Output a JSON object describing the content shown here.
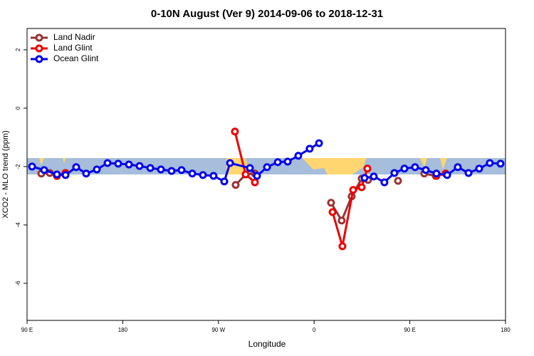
{
  "chart_data": {
    "type": "line",
    "title": "0-10N August (Ver 9)   2014-09-06 to 2018-12-31",
    "x_label": "Longitude",
    "y_label": "XCO2 - MLO trend (ppm)",
    "xlim": [
      90,
      540
    ],
    "ylim": [
      -7.27,
      2.73
    ],
    "xticks": [
      {
        "value": 90,
        "label": "90 E"
      },
      {
        "value": 180,
        "label": "180"
      },
      {
        "value": 270,
        "label": "90 W"
      },
      {
        "value": 360,
        "label": "0"
      },
      {
        "value": 450,
        "label": "90 E"
      },
      {
        "value": 540,
        "label": "180"
      }
    ],
    "yticks": [
      2,
      0,
      -2,
      -4,
      -6
    ],
    "legend": "top-left",
    "series": [
      {
        "name": "Land Nadir",
        "color": "#993333",
        "x": [
          103.4,
          111.4,
          118.1,
          126.2,
          null,
          286.2,
          295.6,
          304.3,
          null,
          375.9,
          385.9,
          395.3,
          404.7,
          410.7,
          null,
          438.9,
          null,
          463.6,
          474.4,
          483.7
        ],
        "values": [
          -2.24,
          -2.22,
          -2.32,
          -2.22,
          null,
          -2.63,
          -2.27,
          -2.24,
          null,
          -3.24,
          -3.85,
          -3.02,
          -2.41,
          -2.46,
          null,
          -2.49,
          null,
          -2.24,
          -2.32,
          -2.24
        ]
      },
      {
        "name": "Land Glint",
        "color": "#ee0000",
        "x": [
          118.1,
          126.2,
          null,
          285.5,
          295.6,
          304.3,
          null,
          377.3,
          386.6,
          396.7,
          404.7,
          410.1,
          null,
          475.0,
          483.7
        ],
        "values": [
          -2.32,
          -2.22,
          null,
          -0.8,
          -2.27,
          -2.54,
          null,
          -3.56,
          -4.73,
          -2.8,
          -2.71,
          -2.07,
          null,
          -2.32,
          -2.24
        ]
      },
      {
        "name": "Ocean Glint",
        "color": "#0000ee",
        "x": [
          94.7,
          106.1,
          118.1,
          126.2,
          136.2,
          145.6,
          155.6,
          165.7,
          175.7,
          185.8,
          195.8,
          205.9,
          215.9,
          225.9,
          235.3,
          245.4,
          255.4,
          265.4,
          275.5,
          280.9,
          299.6,
          306.3,
          315.7,
          325.8,
          335.1,
          345.1,
          355.8,
          364.6,
          null,
          407.4,
          416.1,
          426.1,
          435.5,
          444.9,
          454.9,
          465.0,
          475.0,
          485.1,
          495.1,
          505.2,
          515.2,
          525.2,
          535.3
        ],
        "values": [
          -2.0,
          -2.12,
          -2.27,
          -2.29,
          -2.02,
          -2.24,
          -2.1,
          -1.88,
          -1.9,
          -1.93,
          -1.98,
          -2.05,
          -2.1,
          -2.15,
          -2.12,
          -2.24,
          -2.29,
          -2.32,
          -2.51,
          -1.88,
          -2.05,
          -2.32,
          -2.02,
          -1.85,
          -1.83,
          -1.63,
          -1.39,
          -1.2,
          null,
          -2.39,
          -2.34,
          -2.54,
          -2.22,
          -2.07,
          -2.02,
          -2.12,
          -2.24,
          -2.29,
          -2.02,
          -2.22,
          -2.07,
          -1.88,
          -1.9
        ]
      }
    ]
  }
}
